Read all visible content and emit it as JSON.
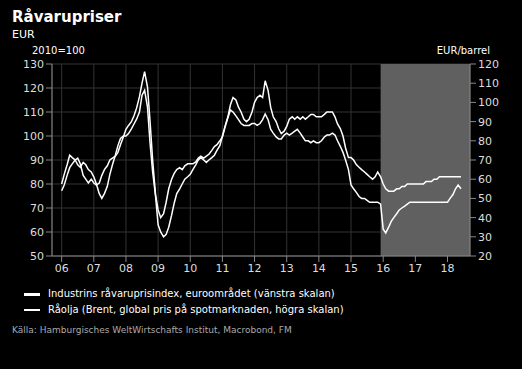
{
  "chart_data": {
    "type": "line",
    "title": "Råvarupriser",
    "subtitle": "EUR",
    "ylabel": "2010=100",
    "y2label": "EUR/barrel",
    "annotations": [
      "Källa: Hamburgisches WeltWirtschafts Institut, Macrobond, FM"
    ],
    "grid": true,
    "shade": {
      "x0": 2015.92,
      "x1": 2018.7,
      "color": "#606060"
    },
    "x": [
      2006.0,
      2006.08,
      2006.17,
      2006.25,
      2006.33,
      2006.42,
      2006.5,
      2006.58,
      2006.67,
      2006.75,
      2006.83,
      2006.92,
      2007.0,
      2007.08,
      2007.17,
      2007.25,
      2007.33,
      2007.42,
      2007.5,
      2007.58,
      2007.67,
      2007.75,
      2007.83,
      2007.92,
      2008.0,
      2008.08,
      2008.17,
      2008.25,
      2008.33,
      2008.42,
      2008.5,
      2008.58,
      2008.67,
      2008.75,
      2008.83,
      2008.92,
      2009.0,
      2009.08,
      2009.17,
      2009.25,
      2009.33,
      2009.42,
      2009.5,
      2009.58,
      2009.67,
      2009.75,
      2009.83,
      2009.92,
      2010.0,
      2010.08,
      2010.17,
      2010.25,
      2010.33,
      2010.42,
      2010.5,
      2010.58,
      2010.67,
      2010.75,
      2010.83,
      2010.92,
      2011.0,
      2011.08,
      2011.17,
      2011.25,
      2011.33,
      2011.42,
      2011.5,
      2011.58,
      2011.67,
      2011.75,
      2011.83,
      2011.92,
      2012.0,
      2012.08,
      2012.17,
      2012.25,
      2012.33,
      2012.42,
      2012.5,
      2012.58,
      2012.67,
      2012.75,
      2012.83,
      2012.92,
      2013.0,
      2013.08,
      2013.17,
      2013.25,
      2013.33,
      2013.42,
      2013.5,
      2013.58,
      2013.67,
      2013.75,
      2013.83,
      2013.92,
      2014.0,
      2014.08,
      2014.17,
      2014.25,
      2014.33,
      2014.42,
      2014.5,
      2014.58,
      2014.67,
      2014.75,
      2014.83,
      2014.92,
      2015.0,
      2015.08,
      2015.17,
      2015.25,
      2015.33,
      2015.42,
      2015.5,
      2015.58,
      2015.67,
      2015.75,
      2015.83,
      2015.92,
      2016.0,
      2016.08,
      2016.17,
      2016.25,
      2016.33,
      2016.42,
      2016.5,
      2016.58,
      2016.67,
      2016.75,
      2016.83,
      2016.92,
      2017.0,
      2017.08,
      2017.17,
      2017.25,
      2017.33,
      2017.42,
      2017.5,
      2017.58,
      2017.67,
      2017.75,
      2017.83,
      2017.92,
      2018.0,
      2018.08,
      2018.17,
      2018.25,
      2018.33,
      2018.42
    ],
    "series": [
      {
        "name": "Industrins råvaruprisindex, euroområdet (vänstra skalan)",
        "color": "#ffffff",
        "values": [
          80,
          84,
          88,
          92,
          91,
          90,
          88,
          87,
          89,
          88,
          86,
          85,
          83,
          80,
          76,
          74,
          76,
          79,
          84,
          88,
          92,
          96,
          99,
          100,
          100,
          101,
          103,
          105,
          107,
          110,
          117,
          119,
          112,
          97,
          85,
          75,
          63,
          60,
          58,
          59,
          62,
          67,
          72,
          76,
          78,
          80,
          82,
          83,
          84,
          86,
          88,
          90,
          91,
          90,
          89,
          90,
          91,
          92,
          94,
          96,
          100,
          104,
          108,
          113,
          116,
          115,
          112,
          110,
          107,
          106,
          107,
          110,
          114,
          116,
          117,
          116,
          123,
          119,
          112,
          108,
          106,
          103,
          101,
          102,
          104,
          107,
          108,
          107,
          108,
          107,
          108,
          107,
          108,
          109,
          109,
          108,
          108,
          108,
          109,
          110,
          110,
          110,
          108,
          105,
          103,
          100,
          95,
          91,
          91,
          90,
          88,
          87,
          86,
          85,
          84,
          83,
          82,
          83,
          85,
          83,
          80,
          78,
          77,
          77,
          77,
          78,
          78,
          79,
          79,
          80,
          80,
          80,
          80,
          80,
          80,
          80,
          81,
          81,
          81,
          82,
          82,
          83,
          83,
          83,
          83,
          83,
          83,
          83,
          83,
          83
        ]
      },
      {
        "name": "Råolja (Brent, global pris på spotmarknaden, högra skalan)",
        "color": "#ffffff",
        "axis": "y2",
        "values": [
          54,
          57,
          62,
          66,
          68,
          70,
          71,
          68,
          62,
          60,
          58,
          60,
          58,
          57,
          58,
          62,
          65,
          67,
          70,
          71,
          72,
          74,
          78,
          82,
          86,
          88,
          90,
          93,
          97,
          103,
          110,
          116,
          108,
          90,
          70,
          52,
          44,
          40,
          42,
          48,
          55,
          60,
          63,
          65,
          66,
          65,
          67,
          68,
          68,
          68,
          69,
          71,
          72,
          71,
          72,
          73,
          75,
          77,
          78,
          80,
          82,
          87,
          92,
          96,
          95,
          93,
          91,
          89,
          88,
          88,
          88,
          89,
          89,
          88,
          89,
          91,
          94,
          91,
          86,
          84,
          82,
          81,
          81,
          83,
          84,
          83,
          84,
          85,
          86,
          84,
          82,
          80,
          80,
          79,
          80,
          79,
          79,
          80,
          82,
          83,
          83,
          84,
          83,
          80,
          77,
          74,
          70,
          65,
          57,
          55,
          53,
          51,
          50,
          50,
          49,
          48,
          48,
          48,
          48,
          47,
          34,
          32,
          35,
          38,
          40,
          42,
          44,
          45,
          46,
          47,
          48,
          48,
          48,
          48,
          48,
          48,
          48,
          48,
          48,
          48,
          48,
          48,
          48,
          48,
          48,
          50,
          52,
          55,
          57,
          55
        ]
      }
    ],
    "xlim": [
      2005.7,
      2018.7
    ],
    "xticks": [
      {
        "value": 2006,
        "label": "06"
      },
      {
        "value": 2007,
        "label": "07"
      },
      {
        "value": 2008,
        "label": "08"
      },
      {
        "value": 2009,
        "label": "09"
      },
      {
        "value": 2010,
        "label": "10"
      },
      {
        "value": 2011,
        "label": "11"
      },
      {
        "value": 2012,
        "label": "12"
      },
      {
        "value": 2013,
        "label": "13"
      },
      {
        "value": 2014,
        "label": "14"
      },
      {
        "value": 2015,
        "label": "15"
      },
      {
        "value": 2016,
        "label": "16"
      },
      {
        "value": 2017,
        "label": "17"
      },
      {
        "value": 2018,
        "label": "18"
      }
    ],
    "ylim": [
      50,
      130
    ],
    "yticks": [
      50,
      60,
      70,
      80,
      90,
      100,
      110,
      120,
      130
    ],
    "y2lim": [
      20,
      120
    ],
    "y2ticks": [
      20,
      30,
      40,
      50,
      60,
      70,
      80,
      90,
      100,
      110,
      120
    ]
  }
}
